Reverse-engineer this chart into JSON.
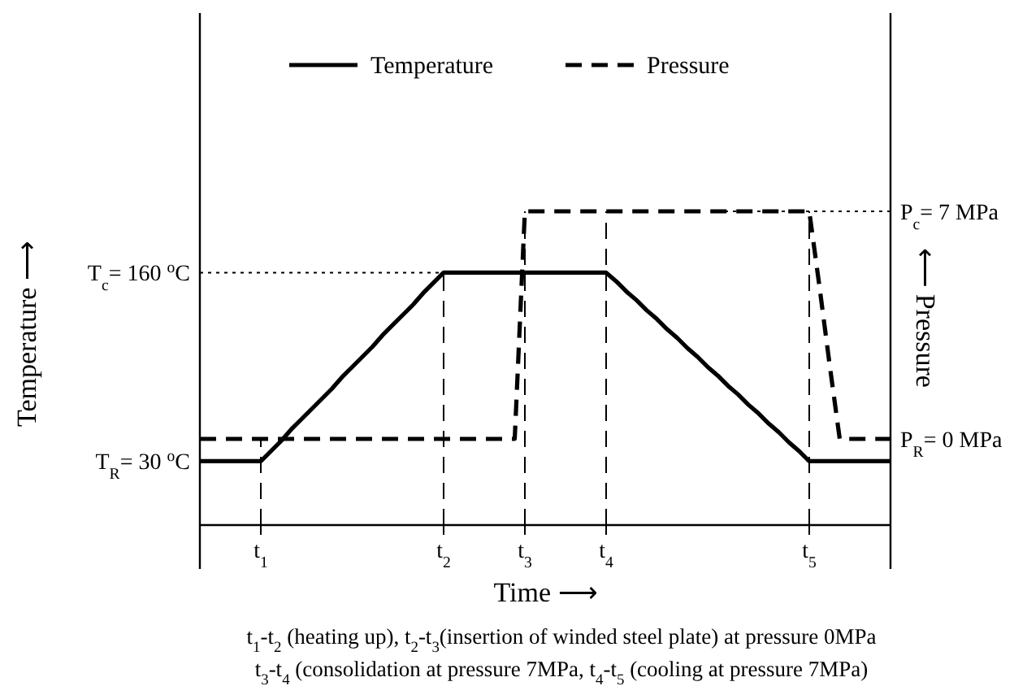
{
  "chart_data": {
    "type": "line",
    "xlabel": "Time ⟶",
    "ylabel": "Temperature ⟶",
    "y2label": "⟵ Pressure",
    "categories": [
      null,
      null,
      null,
      null,
      null,
      null,
      "t$_{1}$",
      null,
      null,
      null,
      null,
      null,
      null,
      null,
      null,
      null,
      null,
      null,
      null,
      null,
      null,
      null,
      null,
      null,
      "t$_{2}$",
      null,
      null,
      null,
      null,
      null,
      null,
      null,
      "t$_{3}$",
      null,
      null,
      null,
      null,
      null,
      null,
      null,
      "t$_{4}$",
      null,
      null,
      null,
      null,
      null,
      null,
      null,
      null,
      null,
      null,
      null,
      null,
      null,
      null,
      null,
      null,
      null,
      null,
      null,
      "t$_{5}$",
      null,
      null,
      null,
      null,
      null,
      null,
      null,
      null
    ],
    "ylim": [
      -14,
      339
    ],
    "yticks": [
      {
        "value": 30,
        "label": "T$_{R}$= 30 $^{o}$C"
      },
      {
        "value": 160,
        "label": "T$_{c}$= 160 $^{o}$C"
      }
    ],
    "y2lim": [
      -2.65,
      13.1
    ],
    "y2ticks": [
      {
        "value": 0,
        "label": "P$_{R}$= 0 MPa"
      },
      {
        "value": 7,
        "label": "P$_{c}$= 7 MPa"
      }
    ],
    "series": [
      {
        "name": "Temperature",
        "color": "#000000",
        "line_style": "solid",
        "values": [
          30,
          30,
          30,
          30,
          30,
          30,
          30,
          37,
          44,
          52,
          59,
          66,
          73,
          80,
          88,
          95,
          102,
          109,
          117,
          124,
          131,
          138,
          146,
          153,
          160,
          160,
          160,
          160,
          160,
          160,
          160,
          160,
          160,
          160,
          160,
          160,
          160,
          160,
          160,
          160,
          160,
          154,
          147,
          141,
          134,
          128,
          121,
          115,
          108,
          102,
          95,
          89,
          82,
          76,
          69,
          63,
          56,
          50,
          43,
          37,
          30,
          30,
          30,
          30,
          30,
          30,
          30,
          30,
          30
        ]
      },
      {
        "name": "Pressure",
        "color": "#000000",
        "line_style": "dashed",
        "axis": "y2",
        "values": [
          0,
          0,
          0,
          0,
          0,
          0,
          0,
          0,
          0,
          0,
          0,
          0,
          0,
          0,
          0,
          0,
          0,
          0,
          0,
          0,
          0,
          0,
          0,
          0,
          0,
          0,
          0,
          0,
          0,
          0,
          0,
          0,
          7,
          7,
          7,
          7,
          7,
          7,
          7,
          7,
          7,
          7,
          7,
          7,
          7,
          7,
          7,
          7,
          7,
          7,
          7,
          7,
          7,
          7,
          7,
          7,
          7,
          7,
          7,
          7,
          7,
          4.7,
          2.3,
          0,
          0,
          0,
          0,
          0,
          0
        ]
      }
    ],
    "ref_lines": [
      {
        "axis": "x",
        "value": "t$_{1}$",
        "line_style": "dashed"
      },
      {
        "axis": "x",
        "value": "t$_{2}$",
        "line_style": "dashed"
      },
      {
        "axis": "x",
        "value": "t$_{3}$",
        "line_style": "dashed"
      },
      {
        "axis": "x",
        "value": "t$_{4}$",
        "line_style": "dashed"
      },
      {
        "axis": "x",
        "value": "t$_{5}$",
        "line_style": "dashed"
      },
      {
        "axis": "y",
        "value": 160,
        "line_style": "dotted"
      },
      {
        "axis": "y2",
        "value": 7,
        "line_style": "dotted"
      }
    ],
    "legend": "top",
    "grid": false,
    "marker": "none",
    "annotations": [
      "t$_{1}$-t$_{2}$ (heating up), t$_{2}$-t$_{3}$(insertion of winded steel plate) at pressure 0MPa",
      "t$_{3}$-t$_{4}$ (consolidation at pressure 7MPa, t$_{4}$-t$_{5}$ (cooling at pressure 7MPa)"
    ]
  }
}
